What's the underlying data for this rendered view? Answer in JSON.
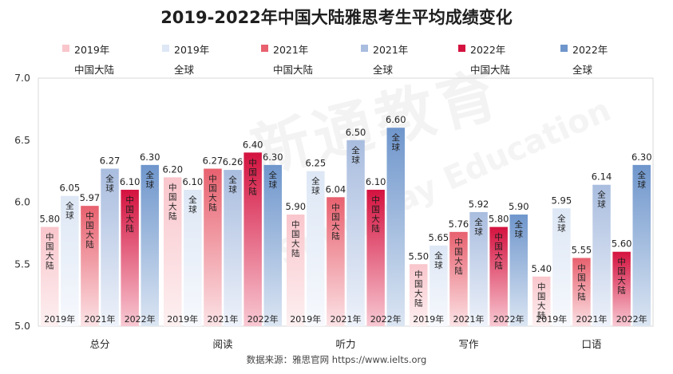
{
  "chart_data": {
    "type": "bar",
    "title": "2019-2022年中国大陆雅思考生平均成绩变化",
    "categories": [
      "总分",
      "阅读",
      "听力",
      "写作",
      "口语"
    ],
    "series": [
      {
        "name": "2019年 中国大陆",
        "year": "2019年",
        "region": "中国大陆",
        "values": [
          5.8,
          6.2,
          5.9,
          5.5,
          5.4
        ],
        "color_top": "#f9c6cc",
        "color_bottom": "#fdf0f1"
      },
      {
        "name": "2019年 全球",
        "year": "2019年",
        "region": "全球",
        "values": [
          6.05,
          6.1,
          6.25,
          5.65,
          5.95
        ],
        "color_top": "#dde7f5",
        "color_bottom": "#f7f9fd"
      },
      {
        "name": "2021年 中国大陆",
        "year": "2021年",
        "region": "中国大陆",
        "values": [
          5.97,
          6.27,
          6.04,
          5.76,
          5.55
        ],
        "color_top": "#e8616f",
        "color_bottom": "#fbe3e6"
      },
      {
        "name": "2021年 全球",
        "year": "2021年",
        "region": "全球",
        "values": [
          6.27,
          6.26,
          6.5,
          5.92,
          6.14
        ],
        "color_top": "#a9bddf",
        "color_bottom": "#eef2fa"
      },
      {
        "name": "2022年 中国大陆",
        "year": "2022年",
        "region": "中国大陆",
        "values": [
          6.1,
          6.4,
          6.1,
          5.8,
          5.6
        ],
        "color_top": "#d4123f",
        "color_bottom": "#f8c9d3"
      },
      {
        "name": "2022年 全球",
        "year": "2022年",
        "region": "全球",
        "values": [
          6.3,
          6.3,
          6.6,
          5.9,
          6.3
        ],
        "color_top": "#6f96cc",
        "color_bottom": "#dce6f3"
      }
    ],
    "value_labels": [
      [
        "5.80",
        "6.05",
        "5.97",
        "6.27",
        "6.10",
        "6.30"
      ],
      [
        "6.20",
        "6.10",
        "6.27",
        "6.26",
        "6.40",
        "6.30"
      ],
      [
        "5.90",
        "6.25",
        "6.04",
        "6.50",
        "6.10",
        "6.60"
      ],
      [
        "5.50",
        "5.65",
        "5.76",
        "5.92",
        "5.80",
        "5.90"
      ],
      [
        "5.40",
        "5.95",
        "5.55",
        "6.14",
        "5.60",
        "6.30"
      ]
    ],
    "bar_year_labels": [
      "2019年",
      "2021年",
      "2022年"
    ],
    "ylim": [
      5.0,
      7.0
    ],
    "yticks": [
      "5.0",
      "5.5",
      "6.0",
      "6.5",
      "7.0"
    ],
    "xlabel": "",
    "ylabel": "",
    "legend_position": "top",
    "grid": false
  },
  "source": "数据来源：雅思官网 https://www.ielts.org",
  "watermark": {
    "main": "新通教育",
    "sub": "Shinyway Education"
  }
}
